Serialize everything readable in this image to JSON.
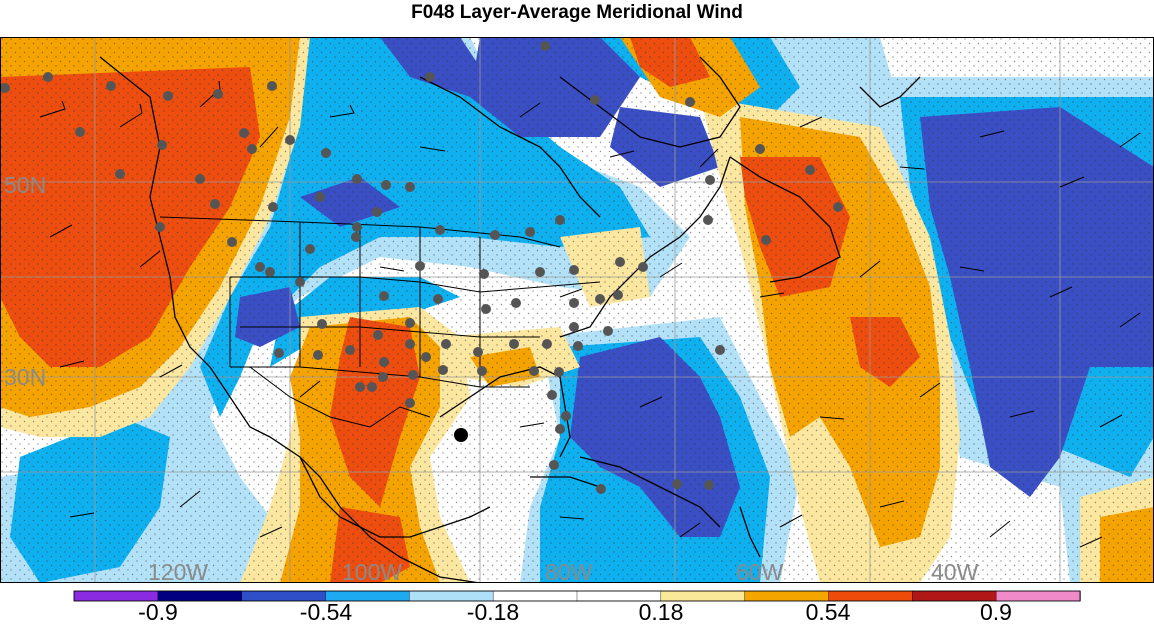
{
  "title": "F048 Layer-Average Meridional Wind",
  "map": {
    "latitude_labels": [
      "50N",
      "30N"
    ],
    "longitude_labels": [
      "120W",
      "100W",
      "80W",
      "60W",
      "40W"
    ],
    "marker_description": "station-dots",
    "highlight_marker": "large-black-dot"
  },
  "colorbar": {
    "colors": [
      "#8a2be2",
      "#000080",
      "#2f4fc8",
      "#1eaaf0",
      "#aee0f8",
      "#ffffff",
      "#ffffff",
      "#fbe99a",
      "#f5a500",
      "#ee4a0a",
      "#b01818",
      "#f08ac8"
    ],
    "tick_labels": [
      "-0.9",
      "-0.54",
      "-0.18",
      "0.18",
      "0.54",
      "0.9"
    ]
  },
  "palette": {
    "strong_negative": "#3a4fc4",
    "negative": "#0fb0f0",
    "weak_negative": "#b3e2f8",
    "neutral": "#ffffff",
    "weak_positive": "#fbe7a0",
    "positive": "#f5a300",
    "strong_positive": "#ed4e10"
  }
}
